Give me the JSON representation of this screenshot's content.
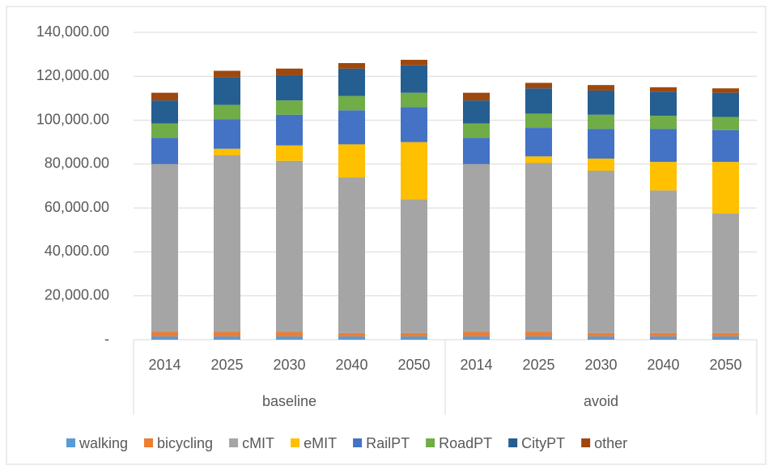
{
  "chart_data": {
    "type": "stacked_bar",
    "categories": [
      "2014",
      "2025",
      "2030",
      "2040",
      "2050",
      "2014",
      "2025",
      "2030",
      "2040",
      "2050"
    ],
    "category_groups": [
      "baseline",
      "avoid"
    ],
    "series": [
      {
        "name": "walking",
        "color": "#5b9bd5",
        "values": [
          1500,
          1500,
          1500,
          1500,
          1500,
          1500,
          1500,
          1500,
          1500,
          1500
        ]
      },
      {
        "name": "bicycling",
        "color": "#ed7d31",
        "values": [
          2000,
          2000,
          2000,
          1500,
          1500,
          2000,
          2000,
          1500,
          1500,
          1500
        ]
      },
      {
        "name": "cMIT",
        "color": "#a5a5a5",
        "values": [
          76500,
          80500,
          78000,
          71000,
          61000,
          76500,
          77000,
          74000,
          65000,
          54500
        ]
      },
      {
        "name": "eMIT",
        "color": "#ffc000",
        "values": [
          0,
          3000,
          7000,
          15000,
          26000,
          0,
          3000,
          5500,
          13000,
          23500
        ]
      },
      {
        "name": "RailPT",
        "color": "#4472c4",
        "values": [
          12000,
          13500,
          14000,
          15500,
          16000,
          12000,
          13000,
          13500,
          15000,
          14500
        ]
      },
      {
        "name": "RoadPT",
        "color": "#70ad47",
        "values": [
          6500,
          6500,
          6500,
          6500,
          6500,
          6500,
          6500,
          6500,
          6000,
          6000
        ]
      },
      {
        "name": "CityPT",
        "color": "#255e91",
        "values": [
          10500,
          12500,
          11500,
          12500,
          12500,
          10500,
          11500,
          11000,
          11000,
          11000
        ]
      },
      {
        "name": "other",
        "color": "#9e480e",
        "values": [
          3500,
          3000,
          3000,
          2500,
          2500,
          3500,
          2500,
          2500,
          2000,
          2000
        ]
      }
    ],
    "ylim": [
      0,
      140000
    ],
    "yticks": [
      {
        "value": 0,
        "label": "-"
      },
      {
        "value": 20000,
        "label": "20,000.00"
      },
      {
        "value": 40000,
        "label": "40,000.00"
      },
      {
        "value": 60000,
        "label": "60,000.00"
      },
      {
        "value": 80000,
        "label": "80,000.00"
      },
      {
        "value": 100000,
        "label": "100,000.00"
      },
      {
        "value": 120000,
        "label": "120,000.00"
      },
      {
        "value": 140000,
        "label": "140,000.00"
      }
    ],
    "grid": true,
    "legend": "bottom"
  }
}
